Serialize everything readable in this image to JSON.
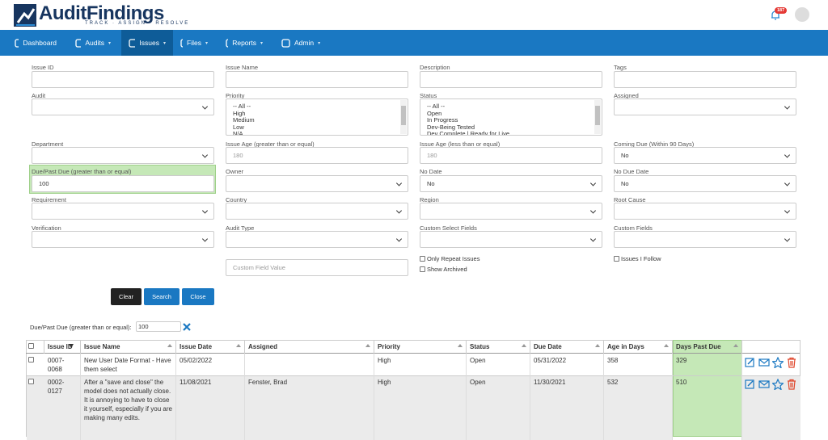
{
  "header": {
    "brand": "AuditFindings",
    "tagline": "TRACK · ASSIGN · RESOLVE",
    "notification_count": "187"
  },
  "nav": [
    "Dashboard",
    "Audits",
    "Issues",
    "Files",
    "Reports",
    "Admin"
  ],
  "active_nav": "Issues",
  "filters": [
    {
      "label": "Issue ID",
      "control": "text"
    },
    {
      "label": "Issue Name",
      "control": "text"
    },
    {
      "label": "Description",
      "control": "text"
    },
    {
      "label": "Tags",
      "control": "text"
    },
    {
      "label": "Audit",
      "control": "select"
    },
    {
      "label": "Priority",
      "control": "list",
      "options": [
        "-- All --",
        "High",
        "Medium",
        "Low",
        "N/A"
      ]
    },
    {
      "label": "Status",
      "control": "list",
      "options": [
        "-- All --",
        "Open",
        "In Progress",
        "Dev-Being Tested",
        "Dev Complete | Ready for Live"
      ]
    },
    {
      "label": "Assigned",
      "control": "select"
    },
    {
      "label": "Department",
      "control": "select"
    },
    {
      "label": "Issue Age (greater than or equal)",
      "control": "text",
      "placeholder": "180"
    },
    {
      "label": "Issue Age (less than or equal)",
      "control": "text",
      "placeholder": "180"
    },
    {
      "label": "Coming Due (Within 90 Days)",
      "control": "select",
      "value": "No"
    },
    {
      "label": "Due/Past Due (greater than or equal)",
      "control": "text",
      "value": "100",
      "highlight": true
    },
    {
      "label": "Owner",
      "control": "select"
    },
    {
      "label": "No Date",
      "control": "select",
      "value": "No"
    },
    {
      "label": "No Due Date",
      "control": "select",
      "value": "No"
    },
    {
      "label": "Requirement",
      "control": "select"
    },
    {
      "label": "Country",
      "control": "select"
    },
    {
      "label": "Region",
      "control": "select"
    },
    {
      "label": "Root Cause",
      "control": "select"
    },
    {
      "label": "Verification",
      "control": "select"
    },
    {
      "label": "Audit Type",
      "control": "select"
    },
    {
      "label": "Custom Select Fields",
      "control": "select"
    },
    {
      "label": "Custom Fields",
      "control": "select"
    }
  ],
  "custom_field_value": {
    "placeholder": "Custom Field Value"
  },
  "checkboxes": [
    "Only Repeat Issues",
    "Show Archived",
    "Issues I Follow"
  ],
  "buttons": [
    "Clear",
    "Search",
    "Close"
  ],
  "active_filter": {
    "label": "Due/Past Due (greater than or equal):",
    "value": "100"
  },
  "table": {
    "columns": [
      "Issue ID",
      "Issue Name",
      "Issue Date",
      "Assigned",
      "Priority",
      "Status",
      "Due Date",
      "Age in Days",
      "Days Past Due"
    ],
    "highlight_column": "Days Past Due",
    "rows": [
      [
        "0007-0068",
        "New User Date Format - Have them select",
        "05/02/2022",
        null,
        "High",
        "Open",
        "05/31/2022",
        "358",
        "329"
      ],
      [
        "0002-0127",
        "After a \"save and close\" the model does not actually close. It is annoying to have to close it yourself, especially if you are making many edits.",
        "11/08/2021",
        "Fenster, Brad",
        "High",
        "Open",
        "11/30/2021",
        "532",
        "510"
      ]
    ]
  }
}
